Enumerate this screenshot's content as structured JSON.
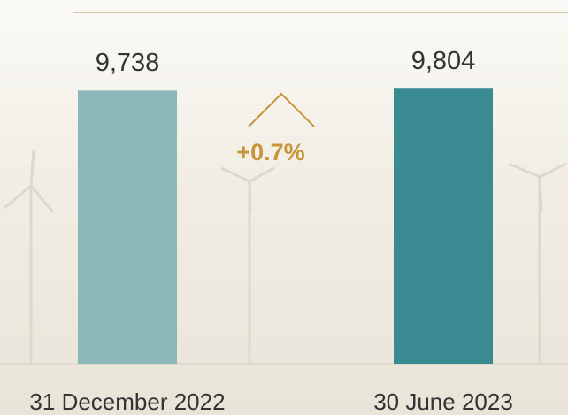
{
  "chart_data": {
    "type": "bar",
    "categories": [
      "31 December 2022",
      "30 June 2023"
    ],
    "values": [
      9738,
      9804
    ],
    "value_labels": [
      "9,738",
      "9,804"
    ],
    "colors": [
      "#8ab8b8",
      "#3a8a92"
    ],
    "annotation": "+0.7%",
    "ylim": [
      0,
      10000
    ]
  }
}
